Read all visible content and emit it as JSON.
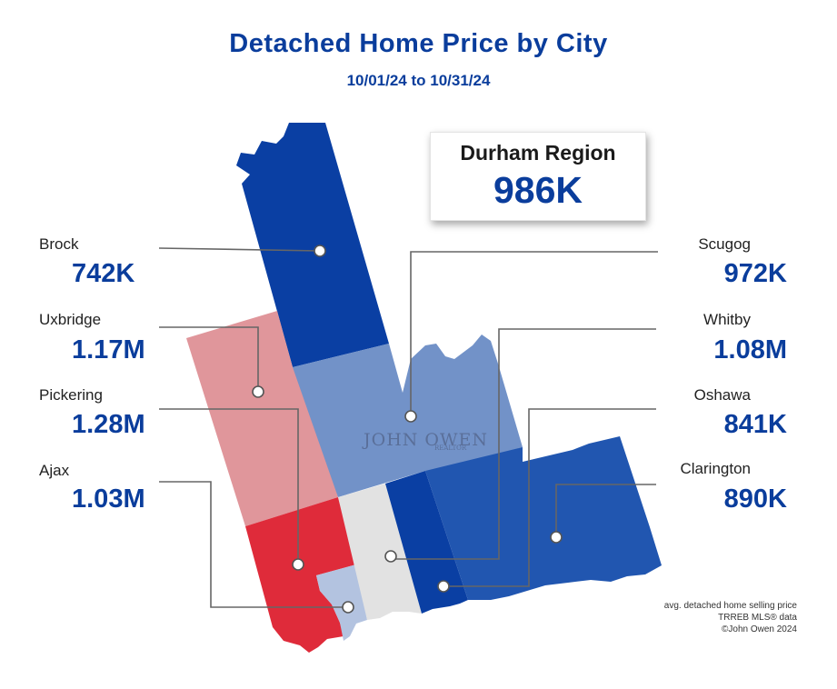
{
  "title": "Detached Home Price by City",
  "subtitle": "10/01/24 to 10/31/24",
  "summary": {
    "name": "Durham Region",
    "value": "986K"
  },
  "watermark": {
    "text": "JOHN OWEN",
    "sub": "REALTOR"
  },
  "cities": {
    "brock": {
      "name": "Brock",
      "value": "742K",
      "color": "#0a3fa3"
    },
    "uxbridge": {
      "name": "Uxbridge",
      "value": "1.17M",
      "color": "#e0969b"
    },
    "pickering": {
      "name": "Pickering",
      "value": "1.28M",
      "color": "#df2b3a"
    },
    "ajax": {
      "name": "Ajax",
      "value": "1.03M",
      "color": "#b3c3e0"
    },
    "scugog": {
      "name": "Scugog",
      "value": "972K",
      "color": "#7292c8"
    },
    "whitby": {
      "name": "Whitby",
      "value": "1.08M",
      "color": "#e2e2e2"
    },
    "oshawa": {
      "name": "Oshawa",
      "value": "841K",
      "color": "#0a3fa3"
    },
    "clarington": {
      "name": "Clarington",
      "value": "890K",
      "color": "#2156b0"
    }
  },
  "notes": [
    "avg. detached home selling price",
    "TRREB MLS® data",
    "©John Owen 2024"
  ]
}
